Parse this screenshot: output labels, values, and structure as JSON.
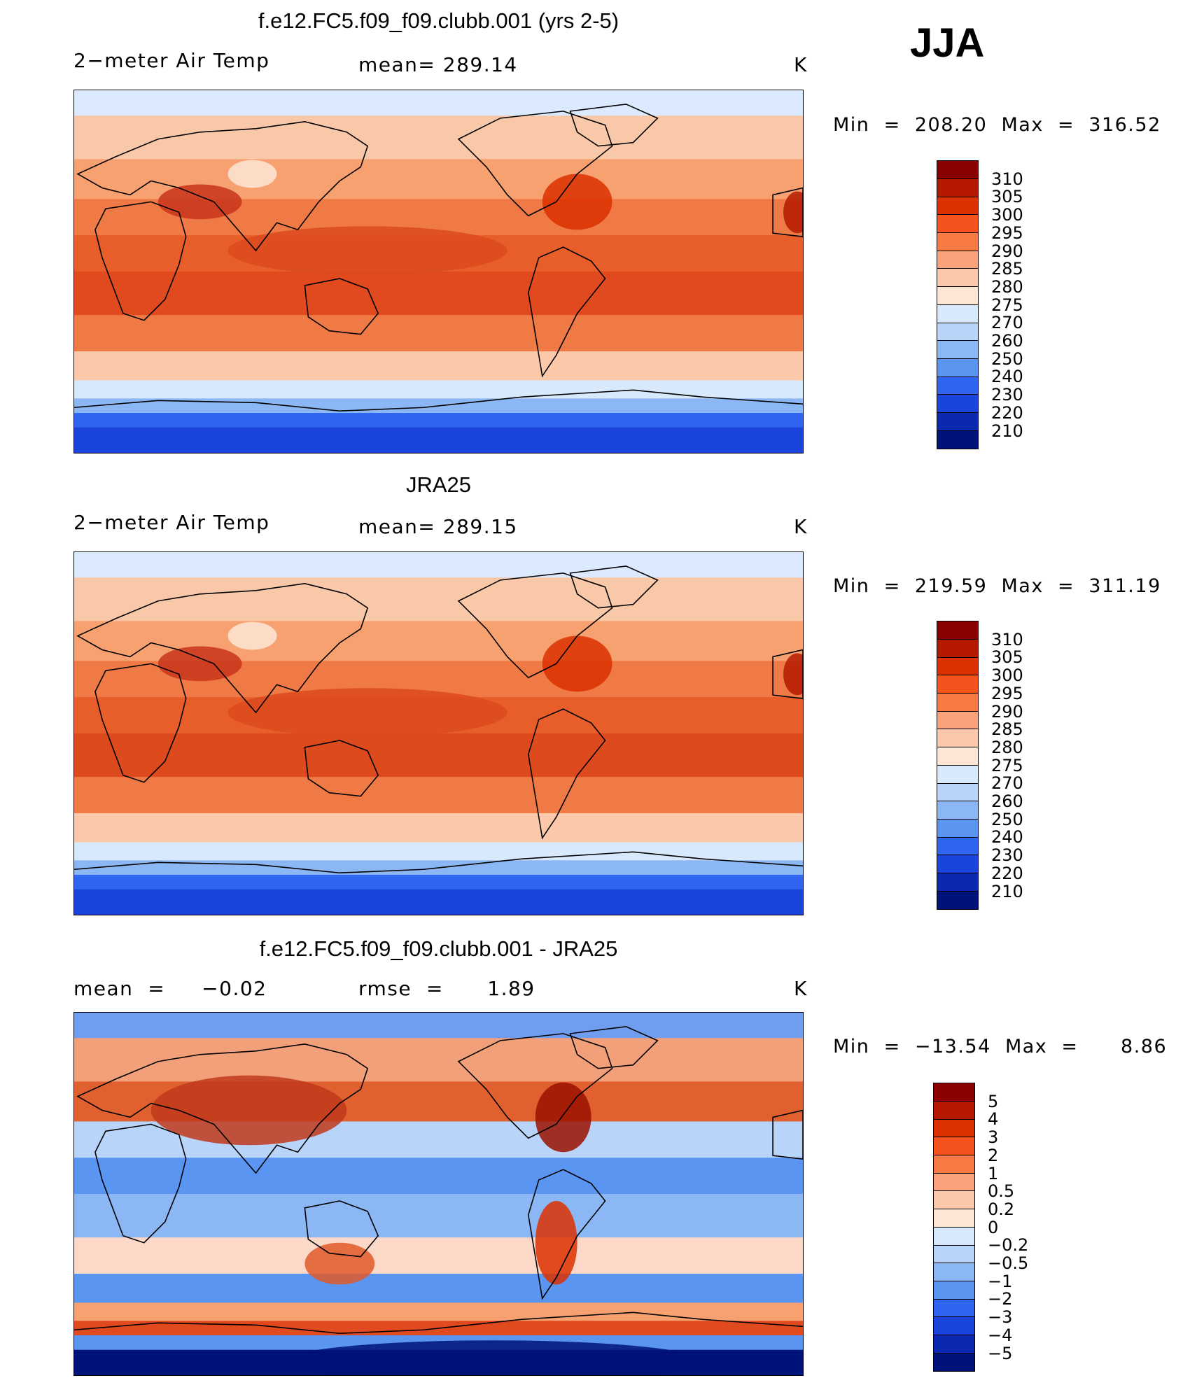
{
  "season": "JJA",
  "panels": [
    {
      "title": "f.e12.FC5.f09_f09.clubb.001 (yrs 2-5)",
      "left_label": "2−meter Air Temp",
      "center_label": "mean=  289.14",
      "units": "K",
      "minmax": "Min  =  208.20  Max  =  316.52",
      "colorbar": {
        "ticks": [
          "310",
          "305",
          "300",
          "295",
          "290",
          "285",
          "280",
          "275",
          "270",
          "260",
          "250",
          "240",
          "230",
          "220",
          "210"
        ],
        "colors": [
          "#8b0000",
          "#b51a00",
          "#dc3000",
          "#f5531e",
          "#f77a45",
          "#f9a37c",
          "#fbc8aa",
          "#fde6d6",
          "#d8e9fb",
          "#b8d4f8",
          "#8bb8f5",
          "#5a95f2",
          "#3066ef",
          "#1a44dc",
          "#0a28b0",
          "#00137a"
        ]
      },
      "map_colors": [
        "#dceaff",
        "#f8c8a8",
        "#f7a070",
        "#f07a45",
        "#e85e2a",
        "#e04a1e",
        "#f07a45",
        "#fbc8aa",
        "#d8e9fb",
        "#8bb8f5",
        "#3066ef",
        "#1a44dc"
      ]
    },
    {
      "title": "JRA25",
      "left_label": "2−meter Air Temp",
      "center_label": "mean=  289.15",
      "units": "K",
      "minmax": "Min  =  219.59  Max  =  311.19",
      "colorbar": {
        "ticks": [
          "310",
          "305",
          "300",
          "295",
          "290",
          "285",
          "280",
          "275",
          "270",
          "260",
          "250",
          "240",
          "230",
          "220",
          "210"
        ],
        "colors": [
          "#8b0000",
          "#b51a00",
          "#dc3000",
          "#f5531e",
          "#f77a45",
          "#f9a37c",
          "#fbc8aa",
          "#fde6d6",
          "#d8e9fb",
          "#b8d4f8",
          "#8bb8f5",
          "#5a95f2",
          "#3066ef",
          "#1a44dc",
          "#0a28b0",
          "#00137a"
        ]
      },
      "map_colors": [
        "#dceaff",
        "#f8c8a8",
        "#f7a070",
        "#f07a45",
        "#e85e2a",
        "#dc4a1e",
        "#f07a45",
        "#fbc8aa",
        "#d8e9fb",
        "#8bb8f5",
        "#3066ef",
        "#1a44dc"
      ]
    },
    {
      "title": "f.e12.FC5.f09_f09.clubb.001 - JRA25",
      "left_label": "mean  =     −0.02",
      "center_label": "rmse  =      1.89",
      "units": "K",
      "minmax": "Min  =  −13.54  Max  =      8.86",
      "colorbar": {
        "ticks": [
          "5",
          "4",
          "3",
          "2",
          "1",
          "0.5",
          "0.2",
          "0",
          "−0.2",
          "−0.5",
          "−1",
          "−2",
          "−3",
          "−4",
          "−5"
        ],
        "colors": [
          "#8b0000",
          "#b51a00",
          "#dc3000",
          "#f5531e",
          "#f77a45",
          "#f9a37c",
          "#fbc8aa",
          "#fde6d6",
          "#d8e9fb",
          "#b8d4f8",
          "#8bb8f5",
          "#5a95f2",
          "#3066ef",
          "#1a44dc",
          "#0a28b0",
          "#00137a"
        ]
      },
      "map_colors": [
        "#6f9df0",
        "#f2a07a",
        "#e06030",
        "#b8d4f8",
        "#5a95f2",
        "#8bb8f5",
        "#fbd8c8",
        "#5a95f2",
        "#f7a070",
        "#e04a1e",
        "#5a95f2",
        "#00137a"
      ]
    }
  ]
}
